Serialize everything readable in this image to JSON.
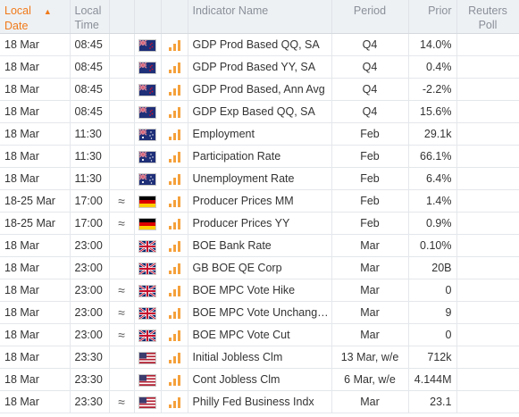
{
  "header": {
    "local_date": [
      "Local",
      "Date"
    ],
    "local_time": [
      "Local",
      "Time"
    ],
    "indicator": "Indicator Name",
    "period": "Period",
    "prior": "Prior",
    "reuters": [
      "Reuters",
      "Poll"
    ]
  },
  "rows": [
    {
      "date": "18 Mar",
      "time": "08:45",
      "approx": "",
      "flag": "nz",
      "name": "GDP Prod Based QQ, SA",
      "period": "Q4",
      "prior": "14.0%",
      "poll": ""
    },
    {
      "date": "18 Mar",
      "time": "08:45",
      "approx": "",
      "flag": "nz",
      "name": "GDP Prod Based YY, SA",
      "period": "Q4",
      "prior": "0.4%",
      "poll": ""
    },
    {
      "date": "18 Mar",
      "time": "08:45",
      "approx": "",
      "flag": "nz",
      "name": "GDP Prod Based, Ann Avg",
      "period": "Q4",
      "prior": "-2.2%",
      "poll": ""
    },
    {
      "date": "18 Mar",
      "time": "08:45",
      "approx": "",
      "flag": "nz",
      "name": "GDP Exp Based QQ, SA",
      "period": "Q4",
      "prior": "15.6%",
      "poll": ""
    },
    {
      "date": "18 Mar",
      "time": "11:30",
      "approx": "",
      "flag": "au",
      "name": "Employment",
      "period": "Feb",
      "prior": "29.1k",
      "poll": ""
    },
    {
      "date": "18 Mar",
      "time": "11:30",
      "approx": "",
      "flag": "au",
      "name": "Participation Rate",
      "period": "Feb",
      "prior": "66.1%",
      "poll": ""
    },
    {
      "date": "18 Mar",
      "time": "11:30",
      "approx": "",
      "flag": "au",
      "name": "Unemployment Rate",
      "period": "Feb",
      "prior": "6.4%",
      "poll": ""
    },
    {
      "date": "18-25 Mar",
      "time": "17:00",
      "approx": "≈",
      "flag": "de",
      "name": "Producer Prices MM",
      "period": "Feb",
      "prior": "1.4%",
      "poll": ""
    },
    {
      "date": "18-25 Mar",
      "time": "17:00",
      "approx": "≈",
      "flag": "de",
      "name": "Producer Prices YY",
      "period": "Feb",
      "prior": "0.9%",
      "poll": ""
    },
    {
      "date": "18 Mar",
      "time": "23:00",
      "approx": "",
      "flag": "uk",
      "name": "BOE Bank Rate",
      "period": "Mar",
      "prior": "0.10%",
      "poll": ""
    },
    {
      "date": "18 Mar",
      "time": "23:00",
      "approx": "",
      "flag": "uk",
      "name": "GB BOE QE Corp",
      "period": "Mar",
      "prior": "20B",
      "poll": ""
    },
    {
      "date": "18 Mar",
      "time": "23:00",
      "approx": "≈",
      "flag": "uk",
      "name": "BOE MPC Vote Hike",
      "period": "Mar",
      "prior": "0",
      "poll": ""
    },
    {
      "date": "18 Mar",
      "time": "23:00",
      "approx": "≈",
      "flag": "uk",
      "name": "BOE MPC Vote Unchang…",
      "period": "Mar",
      "prior": "9",
      "poll": ""
    },
    {
      "date": "18 Mar",
      "time": "23:00",
      "approx": "≈",
      "flag": "uk",
      "name": "BOE MPC Vote Cut",
      "period": "Mar",
      "prior": "0",
      "poll": ""
    },
    {
      "date": "18 Mar",
      "time": "23:30",
      "approx": "",
      "flag": "us",
      "name": "Initial Jobless Clm",
      "period": "13 Mar, w/e",
      "prior": "712k",
      "poll": ""
    },
    {
      "date": "18 Mar",
      "time": "23:30",
      "approx": "",
      "flag": "us",
      "name": "Cont Jobless Clm",
      "period": "6 Mar, w/e",
      "prior": "4.144M",
      "poll": ""
    },
    {
      "date": "18 Mar",
      "time": "23:30",
      "approx": "≈",
      "flag": "us",
      "name": "Philly Fed Business Indx",
      "period": "Mar",
      "prior": "23.1",
      "poll": ""
    }
  ]
}
